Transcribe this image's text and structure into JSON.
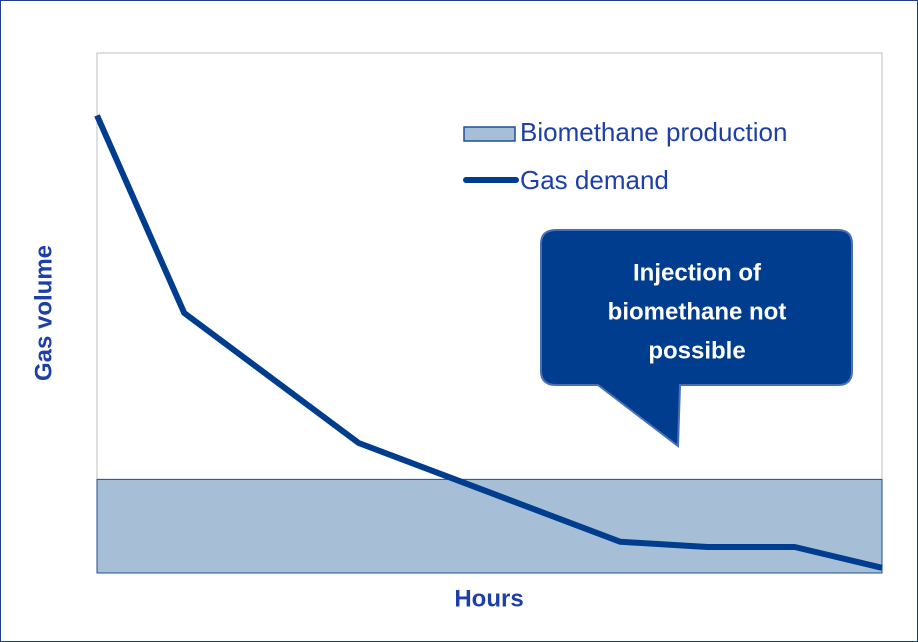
{
  "chart_data": {
    "type": "line",
    "xlabel": "Hours",
    "ylabel": "Gas volume",
    "xlim": [
      0,
      9
    ],
    "ylim": [
      0,
      100
    ],
    "series": [
      {
        "name": "Biomethane production",
        "kind": "area",
        "color": "#a6bfd6",
        "x": [
          0,
          9
        ],
        "values": [
          18,
          18
        ]
      },
      {
        "name": "Gas demand",
        "kind": "line",
        "color": "#003d8f",
        "x": [
          0,
          1,
          3,
          6,
          7,
          8,
          9
        ],
        "values": [
          88,
          50,
          25,
          6,
          5,
          5,
          1
        ]
      }
    ],
    "annotation": [
      "Injection of",
      "biomethane not",
      "possible"
    ]
  }
}
